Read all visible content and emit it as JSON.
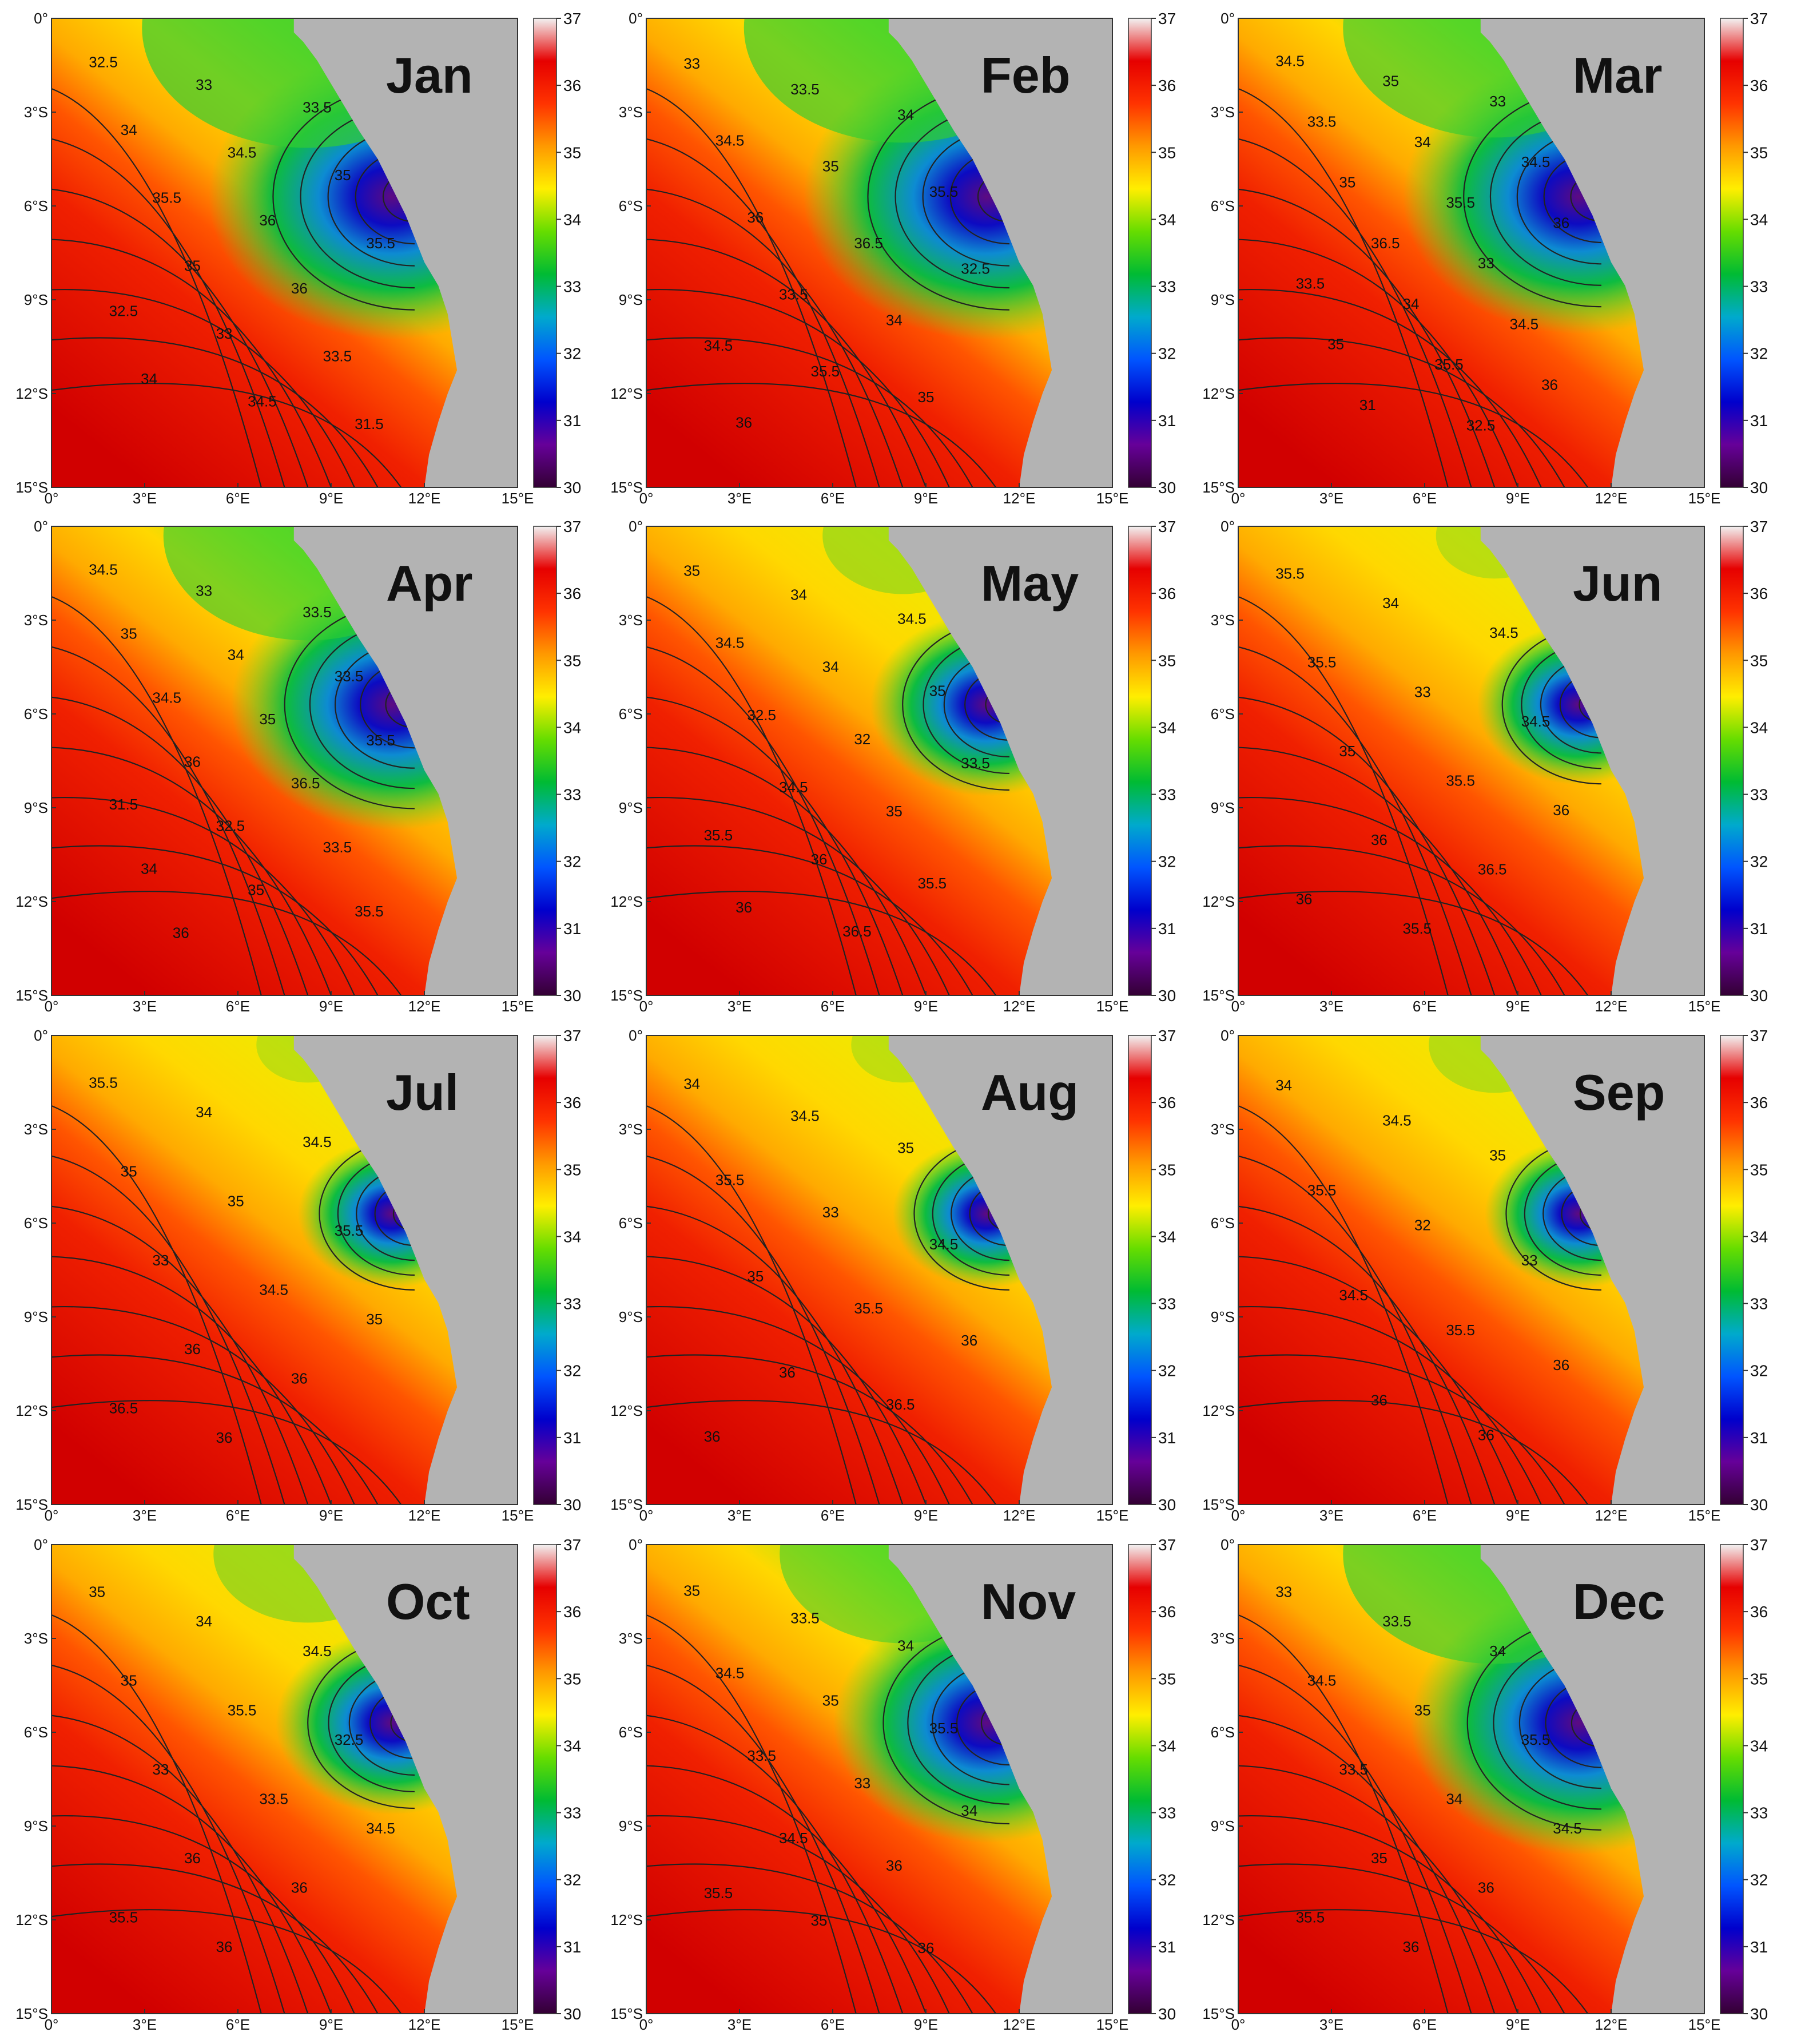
{
  "figure": {
    "x_ticks": [
      "0°",
      "3°E",
      "6°E",
      "9°E",
      "12°E",
      "15°E"
    ],
    "y_ticks": [
      "0°",
      "3°S",
      "6°S",
      "9°S",
      "12°S",
      "15°S"
    ],
    "colorbar_ticks": [
      "37",
      "36",
      "35",
      "34",
      "33",
      "32",
      "31",
      "30"
    ],
    "colorbar_colors": [
      "#f2f2f2",
      "#e60000",
      "#ff3300",
      "#ff9900",
      "#ffee00",
      "#66dd00",
      "#00bb33",
      "#00aacc",
      "#0055ff",
      "#0000cc",
      "#660099",
      "#330033"
    ],
    "land_color": "#b3b3b3",
    "panels": [
      {
        "month": "Jan",
        "contour_labels": [
          "32.5",
          "33",
          "33.5",
          "34",
          "34.5",
          "35",
          "35.5",
          "36",
          "35.5",
          "35",
          "36",
          "32.5",
          "33",
          "33.5",
          "34",
          "34.5",
          "31.5"
        ]
      },
      {
        "month": "Feb",
        "contour_labels": [
          "33",
          "33.5",
          "34",
          "34.5",
          "35",
          "35.5",
          "36",
          "36.5",
          "32.5",
          "33.5",
          "34",
          "34.5",
          "35.5",
          "35",
          "36"
        ]
      },
      {
        "month": "Mar",
        "contour_labels": [
          "34.5",
          "35",
          "33",
          "33.5",
          "34",
          "34.5",
          "35",
          "35.5",
          "36",
          "36.5",
          "33",
          "33.5",
          "34",
          "34.5",
          "35",
          "35.5",
          "36",
          "31",
          "32.5"
        ]
      },
      {
        "month": "Apr",
        "contour_labels": [
          "34.5",
          "33",
          "33.5",
          "35",
          "34",
          "33.5",
          "34.5",
          "35",
          "35.5",
          "36",
          "36.5",
          "31.5",
          "32.5",
          "33.5",
          "34",
          "35",
          "35.5",
          "36"
        ]
      },
      {
        "month": "May",
        "contour_labels": [
          "35",
          "34",
          "34.5",
          "34.5",
          "34",
          "35",
          "32.5",
          "32",
          "33.5",
          "34.5",
          "35",
          "35.5",
          "36",
          "35.5",
          "36",
          "36.5"
        ]
      },
      {
        "month": "Jun",
        "contour_labels": [
          "35.5",
          "34",
          "34.5",
          "35.5",
          "33",
          "34.5",
          "35",
          "35.5",
          "36",
          "36",
          "36.5",
          "36",
          "35.5"
        ]
      },
      {
        "month": "Jul",
        "contour_labels": [
          "35.5",
          "34",
          "34.5",
          "35",
          "35",
          "35.5",
          "33",
          "34.5",
          "35",
          "36",
          "36",
          "36.5",
          "36"
        ]
      },
      {
        "month": "Aug",
        "contour_labels": [
          "34",
          "34.5",
          "35",
          "35.5",
          "33",
          "34.5",
          "35",
          "35.5",
          "36",
          "36",
          "36.5",
          "36"
        ]
      },
      {
        "month": "Sep",
        "contour_labels": [
          "34",
          "34.5",
          "35",
          "35.5",
          "32",
          "33",
          "34.5",
          "35.5",
          "36",
          "36",
          "36"
        ]
      },
      {
        "month": "Oct",
        "contour_labels": [
          "35",
          "34",
          "34.5",
          "35",
          "35.5",
          "32.5",
          "33",
          "33.5",
          "34.5",
          "36",
          "36",
          "35.5",
          "36"
        ]
      },
      {
        "month": "Nov",
        "contour_labels": [
          "35",
          "33.5",
          "34",
          "34.5",
          "35",
          "35.5",
          "33.5",
          "33",
          "34",
          "34.5",
          "36",
          "35.5",
          "35",
          "36"
        ]
      },
      {
        "month": "Dec",
        "contour_labels": [
          "33",
          "33.5",
          "34",
          "34.5",
          "35",
          "35.5",
          "33.5",
          "34",
          "34.5",
          "35",
          "36",
          "35.5",
          "36"
        ]
      }
    ]
  }
}
